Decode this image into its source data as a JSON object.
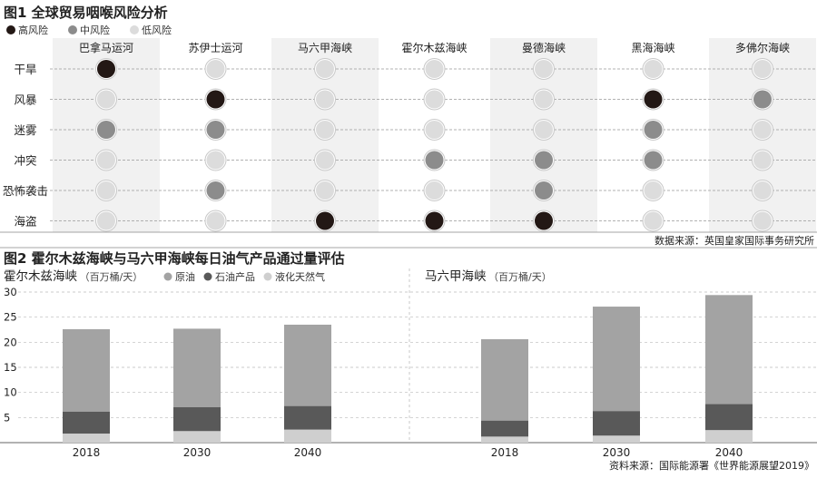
{
  "chart_data": [
    {
      "type": "table",
      "title": "图1 全球贸易咽喉风险分析",
      "legend": [
        {
          "label": "高风险",
          "level": "high",
          "color": "#231815"
        },
        {
          "label": "中风险",
          "level": "medium",
          "color": "#8c8c8c"
        },
        {
          "label": "低风险",
          "level": "low",
          "color": "#dcdcdc"
        }
      ],
      "columns": [
        "巴拿马运河",
        "苏伊士运河",
        "马六甲海峡",
        "霍尔木兹海峡",
        "曼德海峡",
        "黑海海峡",
        "多佛尔海峡"
      ],
      "rows": [
        "干旱",
        "风暴",
        "迷雾",
        "冲突",
        "恐怖袭击",
        "海盗"
      ],
      "levels": [
        [
          "high",
          "low",
          "low",
          "low",
          "low",
          "low",
          "low"
        ],
        [
          "low",
          "high",
          "low",
          "low",
          "low",
          "high",
          "medium"
        ],
        [
          "medium",
          "medium",
          "low",
          "low",
          "low",
          "medium",
          "low"
        ],
        [
          "low",
          "low",
          "low",
          "medium",
          "medium",
          "medium",
          "low"
        ],
        [
          "low",
          "medium",
          "low",
          "low",
          "medium",
          "low",
          "low"
        ],
        [
          "low",
          "low",
          "high",
          "high",
          "high",
          "low",
          "low"
        ]
      ],
      "source": "数据来源：英国皇家国际事务研究所"
    },
    {
      "type": "bar",
      "stacked": true,
      "title": "图2 霍尔木兹海峡与马六甲海峡每日油气产品通过量评估",
      "legend": [
        {
          "name": "原油",
          "color": "#a3a3a3"
        },
        {
          "name": "石油产品",
          "color": "#595959"
        },
        {
          "name": "液化天然气",
          "color": "#cfcfcf"
        }
      ],
      "ylim": [
        0,
        30
      ],
      "yticks": [
        5,
        10,
        15,
        20,
        25,
        30
      ],
      "panels": [
        {
          "title": "霍尔木兹海峡",
          "unit": "（百万桶/天）",
          "categories": [
            "2018",
            "2030",
            "2040"
          ],
          "series": [
            {
              "name": "液化天然气",
              "values": [
                1.8,
                2.3,
                2.6
              ]
            },
            {
              "name": "石油产品",
              "values": [
                4.4,
                4.8,
                4.7
              ]
            },
            {
              "name": "原油",
              "values": [
                16.4,
                15.6,
                16.2
              ]
            }
          ]
        },
        {
          "title": "马六甲海峡",
          "unit": "（百万桶/天）",
          "categories": [
            "2018",
            "2030",
            "2040"
          ],
          "series": [
            {
              "name": "液化天然气",
              "values": [
                1.2,
                1.4,
                2.5
              ]
            },
            {
              "name": "石油产品",
              "values": [
                3.2,
                4.9,
                5.2
              ]
            },
            {
              "name": "原油",
              "values": [
                16.2,
                20.8,
                21.7
              ]
            }
          ]
        }
      ],
      "source": "资料来源：国际能源署《世界能源展望2019》"
    }
  ]
}
